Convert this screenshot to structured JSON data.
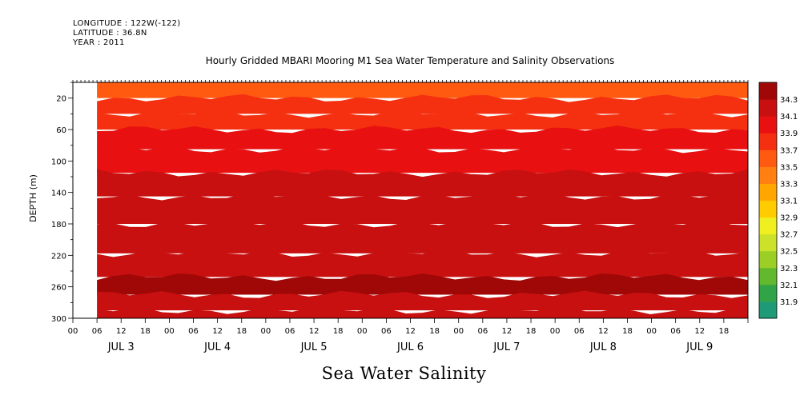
{
  "header": {
    "longitude": "LONGITUDE : 122W(-122)",
    "latitude": "LATITUDE : 36.8N",
    "year": "YEAR : 2011"
  },
  "variable_title": "Sea Water Salinity",
  "chart_data": {
    "type": "heatmap",
    "title": "Hourly Gridded MBARI Mooring M1 Sea Water Temperature and Salinity Observations",
    "xlabel": "",
    "ylabel": "DEPTH (m)",
    "x_hours_range": [
      0,
      168
    ],
    "x_day_labels": [
      "JUL  3",
      "JUL  4",
      "JUL  5",
      "JUL  6",
      "JUL  7",
      "JUL  8",
      "JUL  9"
    ],
    "x_hour_tick_labels": [
      "00",
      "06",
      "12",
      "18"
    ],
    "y_range": [
      0,
      300
    ],
    "y_inverted": true,
    "y_ticks": [
      20,
      60,
      100,
      140,
      180,
      220,
      260,
      300
    ],
    "data_start_hour": 6,
    "colorbar": {
      "levels": [
        31.9,
        32.1,
        32.3,
        32.5,
        32.7,
        32.9,
        33.1,
        33.3,
        33.5,
        33.7,
        33.9,
        34.1,
        34.3
      ],
      "colors": [
        "#d40ed4",
        "#8c28e6",
        "#6a3ce6",
        "#3d4ed9",
        "#2d6fb0",
        "#1e9a76",
        "#31a447",
        "#62b92d",
        "#9ccf26",
        "#cbe12a",
        "#f0f020",
        "#ffcc00",
        "#ffa600",
        "#ff7f10",
        "#ff5a10",
        "#f43010",
        "#e81010",
        "#c81010",
        "#a00808"
      ]
    },
    "depth_profile": [
      {
        "depth": 10,
        "salinity": 33.6
      },
      {
        "depth": 30,
        "salinity": 33.75
      },
      {
        "depth": 50,
        "salinity": 33.85
      },
      {
        "depth": 70,
        "salinity": 33.95
      },
      {
        "depth": 100,
        "salinity": 34.0
      },
      {
        "depth": 130,
        "salinity": 34.1
      },
      {
        "depth": 160,
        "salinity": 34.15
      },
      {
        "depth": 200,
        "salinity": 34.15
      },
      {
        "depth": 235,
        "salinity": 34.25
      },
      {
        "depth": 260,
        "salinity": 34.3
      },
      {
        "depth": 280,
        "salinity": 34.25
      },
      {
        "depth": 300,
        "salinity": 34.15
      }
    ]
  }
}
